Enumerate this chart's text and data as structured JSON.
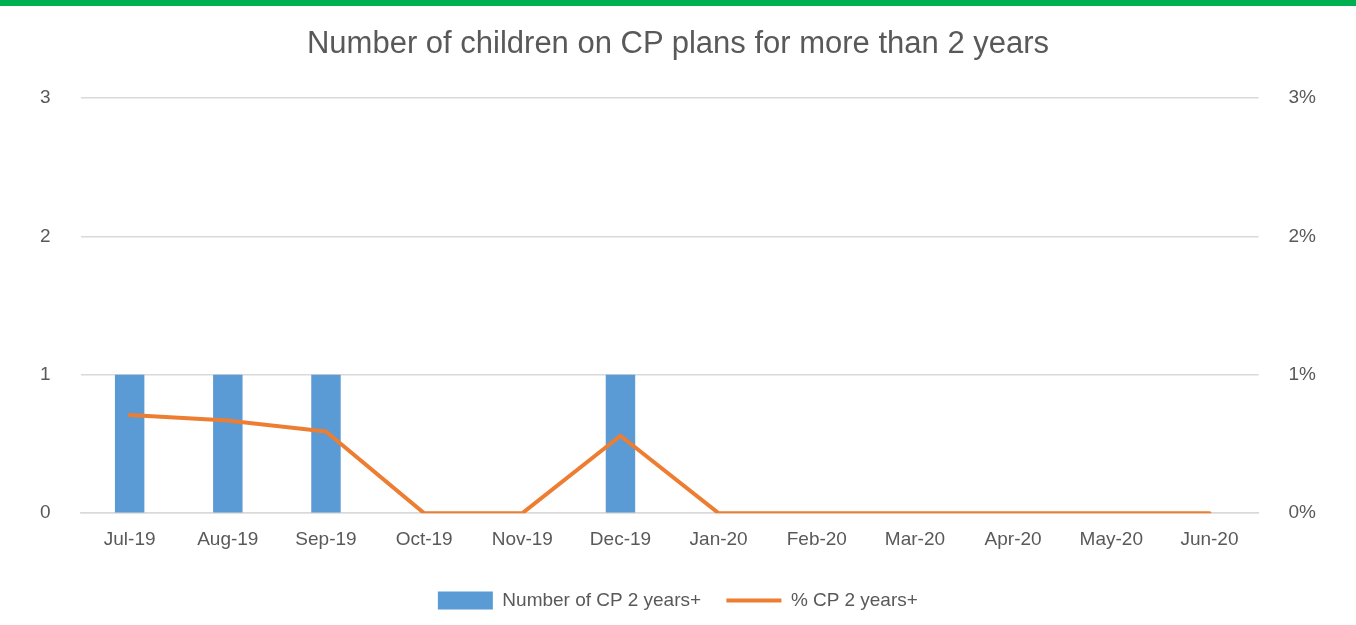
{
  "chart_data": {
    "type": "bar",
    "title": "Number of children on CP plans for more than 2 years",
    "categories": [
      "Jul-19",
      "Aug-19",
      "Sep-19",
      "Oct-19",
      "Nov-19",
      "Dec-19",
      "Jan-20",
      "Feb-20",
      "Mar-20",
      "Apr-20",
      "May-20",
      "Jun-20"
    ],
    "series": [
      {
        "name": "Number of CP 2 years+",
        "color": "#5b9bd5",
        "values": [
          1,
          1,
          1,
          0,
          0,
          1,
          0,
          0,
          0,
          0,
          0,
          0
        ]
      },
      {
        "name": "% CP 2 years+",
        "type": "line",
        "axis": "y2",
        "color": "#ed7d31",
        "values": [
          0.71,
          0.67,
          0.59,
          0,
          0,
          0.56,
          0,
          0,
          0,
          0,
          0,
          0
        ]
      }
    ],
    "ylim": [
      0,
      3
    ],
    "yticks": [
      0,
      1,
      2,
      3
    ],
    "y2lim": [
      0,
      3
    ],
    "y2ticks": [
      {
        "value": 0,
        "label": "0%"
      },
      {
        "value": 1,
        "label": "1%"
      },
      {
        "value": 2,
        "label": "2%"
      },
      {
        "value": 3,
        "label": "3%"
      }
    ],
    "grid": "y",
    "legend": "bottom",
    "marker": "none",
    "line_style": "solid"
  }
}
